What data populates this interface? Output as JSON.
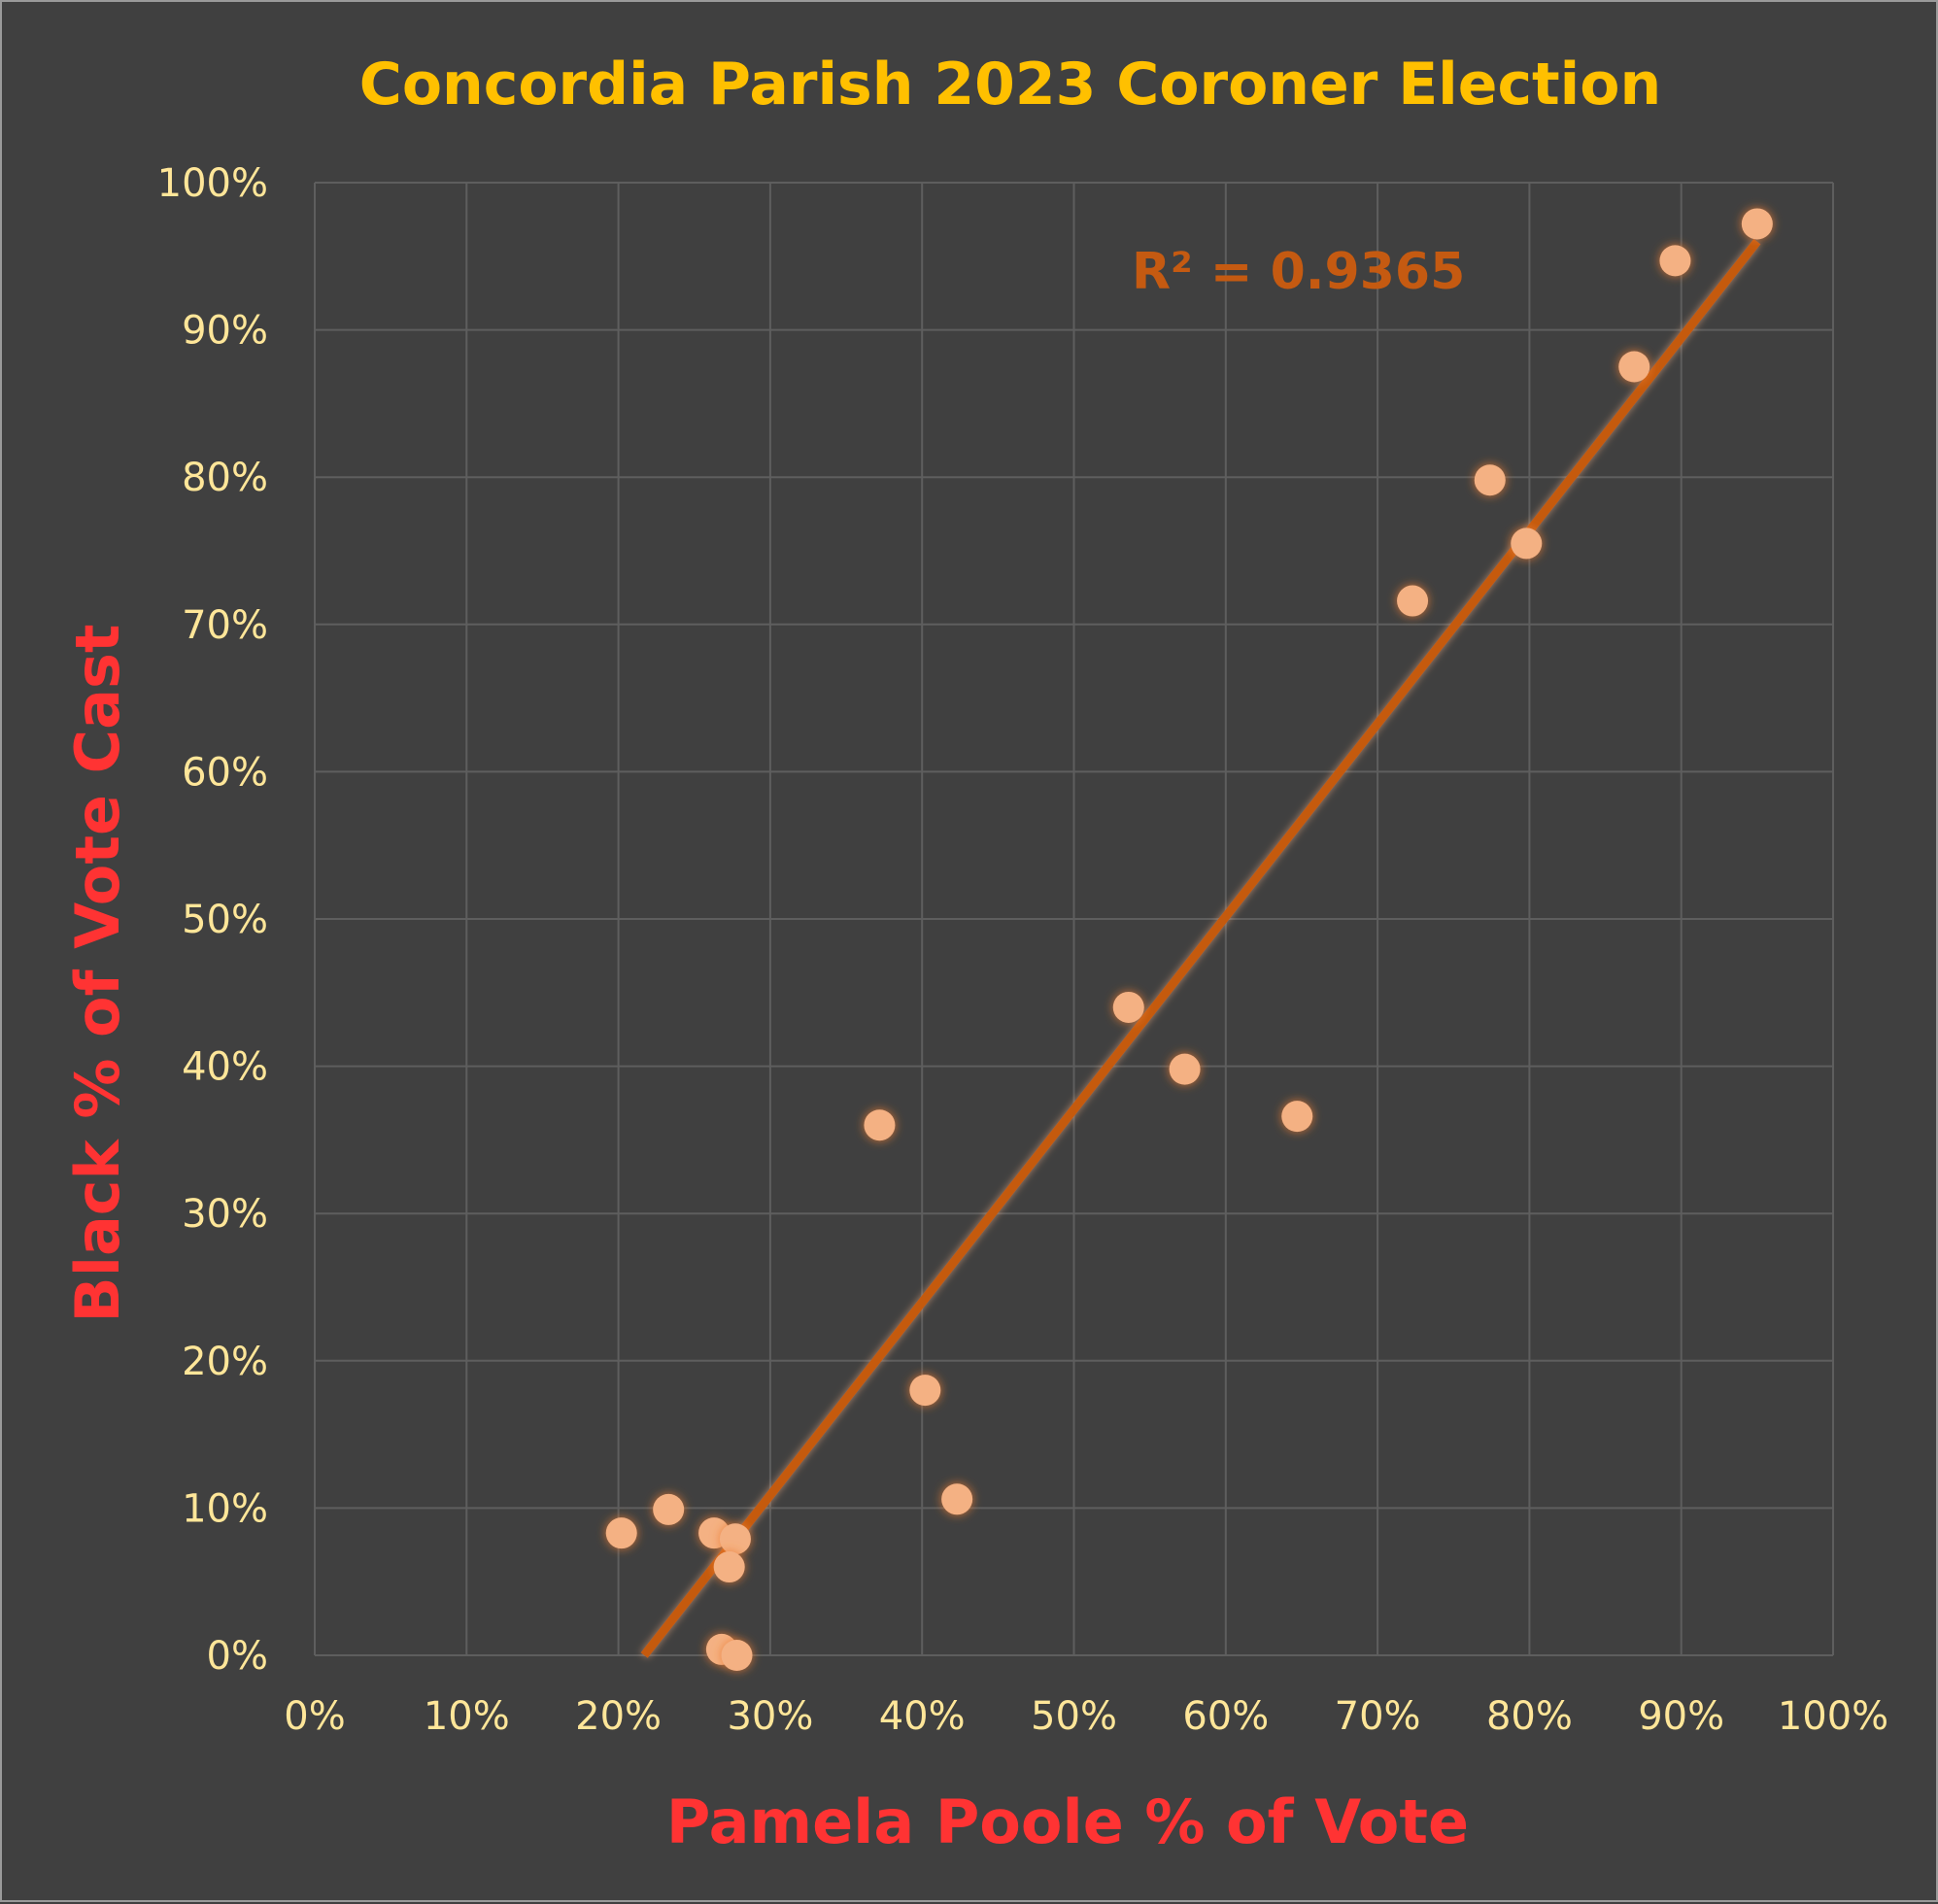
{
  "chart_data": {
    "type": "scatter",
    "title": "Concordia Parish 2023 Coroner Election",
    "xlabel": "Pamela Poole % of Vote",
    "ylabel": "Black % of Vote Cast",
    "xlim": [
      0,
      100
    ],
    "ylim": [
      0,
      100
    ],
    "x_ticks": [
      "0%",
      "10%",
      "20%",
      "30%",
      "40%",
      "50%",
      "60%",
      "70%",
      "80%",
      "90%",
      "100%"
    ],
    "y_ticks": [
      "0%",
      "10%",
      "20%",
      "30%",
      "40%",
      "50%",
      "60%",
      "70%",
      "80%",
      "90%",
      "100%"
    ],
    "grid": true,
    "series": [
      {
        "points": [
          {
            "x": 20.2,
            "y": 8.3
          },
          {
            "x": 23.3,
            "y": 9.9
          },
          {
            "x": 26.3,
            "y": 8.3
          },
          {
            "x": 27.7,
            "y": 7.9
          },
          {
            "x": 27.3,
            "y": 6.0
          },
          {
            "x": 26.8,
            "y": 0.4
          },
          {
            "x": 27.8,
            "y": 0.0
          },
          {
            "x": 37.2,
            "y": 36.0
          },
          {
            "x": 40.2,
            "y": 18.0
          },
          {
            "x": 42.3,
            "y": 10.6
          },
          {
            "x": 53.6,
            "y": 44.0
          },
          {
            "x": 57.3,
            "y": 39.8
          },
          {
            "x": 64.7,
            "y": 36.6
          },
          {
            "x": 72.3,
            "y": 71.6
          },
          {
            "x": 77.4,
            "y": 79.8
          },
          {
            "x": 79.8,
            "y": 75.5
          },
          {
            "x": 86.9,
            "y": 87.5
          },
          {
            "x": 89.6,
            "y": 94.7
          },
          {
            "x": 95.0,
            "y": 97.2
          }
        ]
      }
    ],
    "trendline": {
      "type": "linear",
      "x_range": [
        21.7,
        95.0
      ],
      "y_range": [
        0,
        96.0
      ],
      "r2_label": "R² = 0.9365"
    },
    "colors": {
      "background": "#404040",
      "marker": "#f4b183",
      "trendline": "#c55a11",
      "title": "#ffc000",
      "axis_title": "#ff3333",
      "tick_label": "#ffe699",
      "r2_label": "#c55a11"
    }
  }
}
